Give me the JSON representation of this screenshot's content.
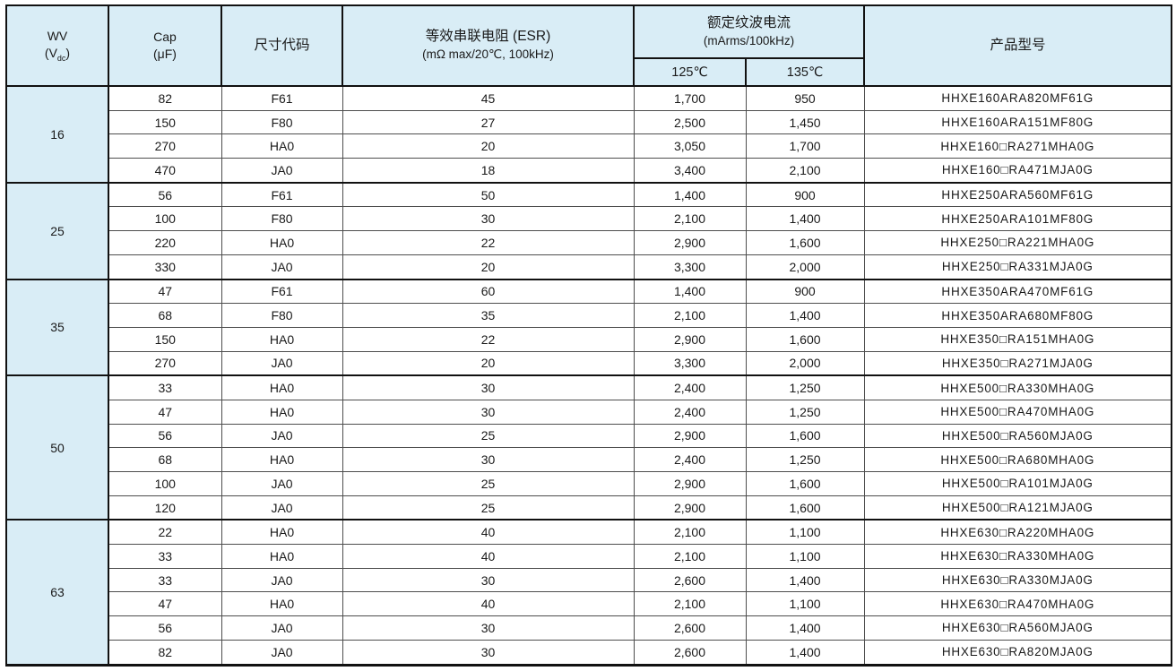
{
  "table": {
    "header": {
      "wv_line1": "WV",
      "wv_pre": "(V",
      "wv_sub": "dc",
      "wv_post": ")",
      "cap_line1": "Cap",
      "cap_line2": "(μF)",
      "size_code": "尺寸代码",
      "esr_line1": "等效串联电阻 (ESR)",
      "esr_line2": "(mΩ max/20℃, 100kHz)",
      "ripple_line1": "额定纹波电流",
      "ripple_line2": "(mArms/100kHz)",
      "temp_125": "125℃",
      "temp_135": "135℃",
      "part_number": "产品型号"
    },
    "groups": [
      {
        "wv": "16",
        "rows": [
          {
            "cap": "82",
            "size": "F61",
            "esr": "45",
            "ripple_125": "1,700",
            "ripple_135": "950",
            "part": "HHXE160ARA820MF61G"
          },
          {
            "cap": "150",
            "size": "F80",
            "esr": "27",
            "ripple_125": "2,500",
            "ripple_135": "1,450",
            "part": "HHXE160ARA151MF80G"
          },
          {
            "cap": "270",
            "size": "HA0",
            "esr": "20",
            "ripple_125": "3,050",
            "ripple_135": "1,700",
            "part": "HHXE160□RA271MHA0G"
          },
          {
            "cap": "470",
            "size": "JA0",
            "esr": "18",
            "ripple_125": "3,400",
            "ripple_135": "2,100",
            "part": "HHXE160□RA471MJA0G"
          }
        ]
      },
      {
        "wv": "25",
        "rows": [
          {
            "cap": "56",
            "size": "F61",
            "esr": "50",
            "ripple_125": "1,400",
            "ripple_135": "900",
            "part": "HHXE250ARA560MF61G"
          },
          {
            "cap": "100",
            "size": "F80",
            "esr": "30",
            "ripple_125": "2,100",
            "ripple_135": "1,400",
            "part": "HHXE250ARA101MF80G"
          },
          {
            "cap": "220",
            "size": "HA0",
            "esr": "22",
            "ripple_125": "2,900",
            "ripple_135": "1,600",
            "part": "HHXE250□RA221MHA0G"
          },
          {
            "cap": "330",
            "size": "JA0",
            "esr": "20",
            "ripple_125": "3,300",
            "ripple_135": "2,000",
            "part": "HHXE250□RA331MJA0G"
          }
        ]
      },
      {
        "wv": "35",
        "rows": [
          {
            "cap": "47",
            "size": "F61",
            "esr": "60",
            "ripple_125": "1,400",
            "ripple_135": "900",
            "part": "HHXE350ARA470MF61G"
          },
          {
            "cap": "68",
            "size": "F80",
            "esr": "35",
            "ripple_125": "2,100",
            "ripple_135": "1,400",
            "part": "HHXE350ARA680MF80G"
          },
          {
            "cap": "150",
            "size": "HA0",
            "esr": "22",
            "ripple_125": "2,900",
            "ripple_135": "1,600",
            "part": "HHXE350□RA151MHA0G"
          },
          {
            "cap": "270",
            "size": "JA0",
            "esr": "20",
            "ripple_125": "3,300",
            "ripple_135": "2,000",
            "part": "HHXE350□RA271MJA0G"
          }
        ]
      },
      {
        "wv": "50",
        "rows": [
          {
            "cap": "33",
            "size": "HA0",
            "esr": "30",
            "ripple_125": "2,400",
            "ripple_135": "1,250",
            "part": "HHXE500□RA330MHA0G"
          },
          {
            "cap": "47",
            "size": "HA0",
            "esr": "30",
            "ripple_125": "2,400",
            "ripple_135": "1,250",
            "part": "HHXE500□RA470MHA0G"
          },
          {
            "cap": "56",
            "size": "JA0",
            "esr": "25",
            "ripple_125": "2,900",
            "ripple_135": "1,600",
            "part": "HHXE500□RA560MJA0G"
          },
          {
            "cap": "68",
            "size": "HA0",
            "esr": "30",
            "ripple_125": "2,400",
            "ripple_135": "1,250",
            "part": "HHXE500□RA680MHA0G"
          },
          {
            "cap": "100",
            "size": "JA0",
            "esr": "25",
            "ripple_125": "2,900",
            "ripple_135": "1,600",
            "part": "HHXE500□RA101MJA0G"
          },
          {
            "cap": "120",
            "size": "JA0",
            "esr": "25",
            "ripple_125": "2,900",
            "ripple_135": "1,600",
            "part": "HHXE500□RA121MJA0G"
          }
        ]
      },
      {
        "wv": "63",
        "rows": [
          {
            "cap": "22",
            "size": "HA0",
            "esr": "40",
            "ripple_125": "2,100",
            "ripple_135": "1,100",
            "part": "HHXE630□RA220MHA0G"
          },
          {
            "cap": "33",
            "size": "HA0",
            "esr": "40",
            "ripple_125": "2,100",
            "ripple_135": "1,100",
            "part": "HHXE630□RA330MHA0G"
          },
          {
            "cap": "33",
            "size": "JA0",
            "esr": "30",
            "ripple_125": "2,600",
            "ripple_135": "1,400",
            "part": "HHXE630□RA330MJA0G"
          },
          {
            "cap": "47",
            "size": "HA0",
            "esr": "40",
            "ripple_125": "2,100",
            "ripple_135": "1,100",
            "part": "HHXE630□RA470MHA0G"
          },
          {
            "cap": "56",
            "size": "JA0",
            "esr": "30",
            "ripple_125": "2,600",
            "ripple_135": "1,400",
            "part": "HHXE630□RA560MJA0G"
          },
          {
            "cap": "82",
            "size": "JA0",
            "esr": "30",
            "ripple_125": "2,600",
            "ripple_135": "1,400",
            "part": "HHXE630□RA820MJA0G"
          }
        ]
      }
    ],
    "colors": {
      "header_bg": "#d9edf6",
      "border_dark": "#111111",
      "border_light": "#4d4d4d",
      "text": "#1a1a1a"
    }
  }
}
